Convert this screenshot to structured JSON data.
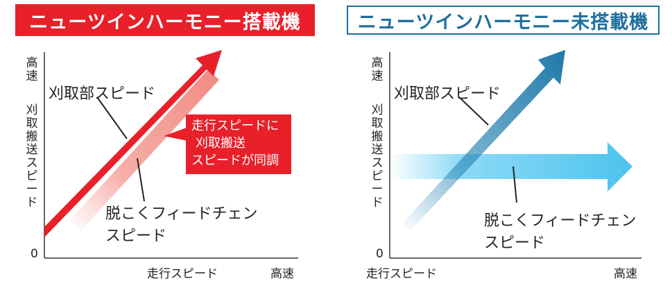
{
  "left_panel": {
    "title": "ニューツインハーモニー搭載機",
    "y_axis_top": "高速",
    "y_axis_label": "刈取搬送スピード",
    "y_zero": "0",
    "x_axis_label": "走行スピード",
    "x_axis_end": "高速",
    "label_reap": "刈取部スピード",
    "label_thresh_line1": "脱こくフィードチェン",
    "label_thresh_line2": "スピード",
    "callout_line1": "走行スピードに",
    "callout_line2": "刈取搬送",
    "callout_line3": "スピードが同調",
    "colors": {
      "accent": "#e8202a"
    }
  },
  "right_panel": {
    "title": "ニューツインハーモニー未搭載機",
    "y_axis_top": "高速",
    "y_axis_label": "刈取搬送スピード",
    "y_zero": "0",
    "x_axis_label": "走行スピード",
    "x_axis_end": "高速",
    "label_reap": "刈取部スピード",
    "label_thresh_line1": "脱こくフィードチェン",
    "label_thresh_line2": "スピード",
    "colors": {
      "accent": "#1e6f9f",
      "light": "#4cc3ee"
    }
  }
}
